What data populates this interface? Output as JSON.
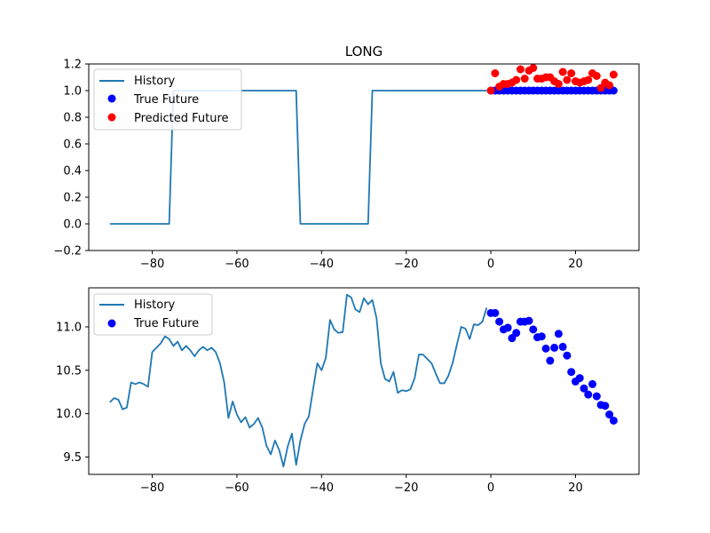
{
  "colors": {
    "history": "#1f77b4",
    "true_future": "#0000ff",
    "predicted_future": "#ff0000",
    "axes": "#000000",
    "legend_border": "#cccccc"
  },
  "chart_data": [
    {
      "type": "line",
      "title": "LONG",
      "xlim": [
        -95,
        35
      ],
      "ylim": [
        -0.2,
        1.2
      ],
      "xticks": [
        -80,
        -60,
        -40,
        -20,
        0,
        20
      ],
      "yticks": [
        -0.2,
        0.0,
        0.2,
        0.4,
        0.6,
        0.8,
        1.0,
        1.2
      ],
      "xticklabels": [
        "−80",
        "−60",
        "−40",
        "−20",
        "0",
        "20"
      ],
      "yticklabels": [
        "−0.2",
        "0.0",
        "0.2",
        "0.4",
        "0.6",
        "0.8",
        "1.0",
        "1.2"
      ],
      "legend_position": "upper-left",
      "series": [
        {
          "name": "History",
          "kind": "line",
          "points": [
            [
              -90,
              0
            ],
            [
              -76,
              0
            ],
            [
              -75,
              1
            ],
            [
              -46,
              1
            ],
            [
              -45,
              0
            ],
            [
              -29,
              0
            ],
            [
              -28,
              1
            ],
            [
              -1,
              1
            ]
          ]
        },
        {
          "name": "True Future",
          "kind": "scatter",
          "points": [
            [
              0,
              1
            ],
            [
              1,
              1
            ],
            [
              2,
              1
            ],
            [
              3,
              1
            ],
            [
              4,
              1
            ],
            [
              5,
              1
            ],
            [
              6,
              1
            ],
            [
              7,
              1
            ],
            [
              8,
              1
            ],
            [
              9,
              1
            ],
            [
              10,
              1
            ],
            [
              11,
              1
            ],
            [
              12,
              1
            ],
            [
              13,
              1
            ],
            [
              14,
              1
            ],
            [
              15,
              1
            ],
            [
              16,
              1
            ],
            [
              17,
              1
            ],
            [
              18,
              1
            ],
            [
              19,
              1
            ],
            [
              20,
              1
            ],
            [
              21,
              1
            ],
            [
              22,
              1
            ],
            [
              23,
              1
            ],
            [
              24,
              1
            ],
            [
              25,
              1
            ],
            [
              26,
              1
            ],
            [
              27,
              1
            ],
            [
              28,
              1
            ],
            [
              29,
              1
            ]
          ]
        },
        {
          "name": "Predicted Future",
          "kind": "scatter",
          "points": [
            [
              0,
              1.0
            ],
            [
              1,
              1.13
            ],
            [
              2,
              1.03
            ],
            [
              3,
              1.05
            ],
            [
              4,
              1.05
            ],
            [
              5,
              1.06
            ],
            [
              6,
              1.08
            ],
            [
              7,
              1.16
            ],
            [
              8,
              1.09
            ],
            [
              9,
              1.15
            ],
            [
              10,
              1.17
            ],
            [
              11,
              1.09
            ],
            [
              12,
              1.09
            ],
            [
              13,
              1.1
            ],
            [
              14,
              1.1
            ],
            [
              15,
              1.07
            ],
            [
              16,
              1.05
            ],
            [
              17,
              1.14
            ],
            [
              18,
              1.08
            ],
            [
              19,
              1.13
            ],
            [
              20,
              1.07
            ],
            [
              21,
              1.06
            ],
            [
              22,
              1.07
            ],
            [
              23,
              1.08
            ],
            [
              24,
              1.13
            ],
            [
              25,
              1.11
            ],
            [
              26,
              1.02
            ],
            [
              27,
              1.06
            ],
            [
              28,
              1.04
            ],
            [
              29,
              1.12
            ]
          ]
        }
      ]
    },
    {
      "type": "line",
      "title": "",
      "xlim": [
        -95,
        35
      ],
      "ylim": [
        9.3,
        11.45
      ],
      "xticks": [
        -80,
        -60,
        -40,
        -20,
        0,
        20
      ],
      "yticks": [
        9.5,
        10.0,
        10.5,
        11.0
      ],
      "xticklabels": [
        "−80",
        "−60",
        "−40",
        "−20",
        "0",
        "20"
      ],
      "yticklabels": [
        "9.5",
        "10.0",
        "10.5",
        "11.0"
      ],
      "legend_position": "upper-left",
      "series": [
        {
          "name": "History",
          "kind": "line",
          "points": [
            [
              -90,
              10.13
            ],
            [
              -89,
              10.18
            ],
            [
              -88,
              10.16
            ],
            [
              -87,
              10.05
            ],
            [
              -86,
              10.07
            ],
            [
              -85,
              10.36
            ],
            [
              -84,
              10.34
            ],
            [
              -83,
              10.36
            ],
            [
              -82,
              10.34
            ],
            [
              -81,
              10.31
            ],
            [
              -80,
              10.71
            ],
            [
              -79,
              10.76
            ],
            [
              -78,
              10.81
            ],
            [
              -77,
              10.89
            ],
            [
              -76,
              10.86
            ],
            [
              -75,
              10.78
            ],
            [
              -74,
              10.83
            ],
            [
              -73,
              10.73
            ],
            [
              -72,
              10.78
            ],
            [
              -71,
              10.73
            ],
            [
              -70,
              10.66
            ],
            [
              -69,
              10.73
            ],
            [
              -68,
              10.77
            ],
            [
              -67,
              10.73
            ],
            [
              -66,
              10.76
            ],
            [
              -65,
              10.71
            ],
            [
              -64,
              10.58
            ],
            [
              -63,
              10.36
            ],
            [
              -62,
              9.95
            ],
            [
              -61,
              10.14
            ],
            [
              -60,
              9.99
            ],
            [
              -59,
              9.9
            ],
            [
              -58,
              9.96
            ],
            [
              -57,
              9.84
            ],
            [
              -56,
              9.88
            ],
            [
              -55,
              9.95
            ],
            [
              -54,
              9.84
            ],
            [
              -53,
              9.63
            ],
            [
              -52,
              9.53
            ],
            [
              -51,
              9.69
            ],
            [
              -50,
              9.58
            ],
            [
              -49,
              9.39
            ],
            [
              -48,
              9.62
            ],
            [
              -47,
              9.77
            ],
            [
              -46,
              9.41
            ],
            [
              -45,
              9.69
            ],
            [
              -44,
              9.88
            ],
            [
              -43,
              9.97
            ],
            [
              -42,
              10.28
            ],
            [
              -41,
              10.58
            ],
            [
              -40,
              10.5
            ],
            [
              -39,
              10.64
            ],
            [
              -38,
              11.08
            ],
            [
              -37,
              10.97
            ],
            [
              -36,
              10.93
            ],
            [
              -35,
              10.94
            ],
            [
              -34,
              11.37
            ],
            [
              -33,
              11.34
            ],
            [
              -32,
              11.2
            ],
            [
              -31,
              11.17
            ],
            [
              -30,
              11.33
            ],
            [
              -29,
              11.26
            ],
            [
              -28,
              11.31
            ],
            [
              -27,
              11.1
            ],
            [
              -26,
              10.58
            ],
            [
              -25,
              10.4
            ],
            [
              -24,
              10.37
            ],
            [
              -23,
              10.48
            ],
            [
              -22,
              10.24
            ],
            [
              -21,
              10.27
            ],
            [
              -20,
              10.26
            ],
            [
              -19,
              10.28
            ],
            [
              -18,
              10.41
            ],
            [
              -17,
              10.68
            ],
            [
              -16,
              10.68
            ],
            [
              -15,
              10.63
            ],
            [
              -14,
              10.58
            ],
            [
              -13,
              10.46
            ],
            [
              -12,
              10.35
            ],
            [
              -11,
              10.35
            ],
            [
              -10,
              10.44
            ],
            [
              -9,
              10.59
            ],
            [
              -8,
              10.8
            ],
            [
              -7,
              11.0
            ],
            [
              -6,
              10.98
            ],
            [
              -5,
              10.86
            ],
            [
              -4,
              11.03
            ],
            [
              -3,
              11.02
            ],
            [
              -2,
              11.06
            ],
            [
              -1,
              11.22
            ]
          ]
        },
        {
          "name": "True Future",
          "kind": "scatter",
          "points": [
            [
              0,
              11.16
            ],
            [
              1,
              11.16
            ],
            [
              2,
              11.06
            ],
            [
              3,
              10.97
            ],
            [
              4,
              10.99
            ],
            [
              5,
              10.87
            ],
            [
              6,
              10.93
            ],
            [
              7,
              11.06
            ],
            [
              8,
              11.06
            ],
            [
              9,
              11.07
            ],
            [
              10,
              10.97
            ],
            [
              11,
              10.88
            ],
            [
              12,
              10.89
            ],
            [
              13,
              10.75
            ],
            [
              14,
              10.61
            ],
            [
              15,
              10.76
            ],
            [
              16,
              10.92
            ],
            [
              17,
              10.77
            ],
            [
              18,
              10.67
            ],
            [
              19,
              10.48
            ],
            [
              20,
              10.37
            ],
            [
              21,
              10.41
            ],
            [
              22,
              10.29
            ],
            [
              23,
              10.22
            ],
            [
              24,
              10.34
            ],
            [
              25,
              10.2
            ],
            [
              26,
              10.1
            ],
            [
              27,
              10.09
            ],
            [
              28,
              9.99
            ],
            [
              29,
              9.92
            ]
          ]
        }
      ]
    }
  ]
}
